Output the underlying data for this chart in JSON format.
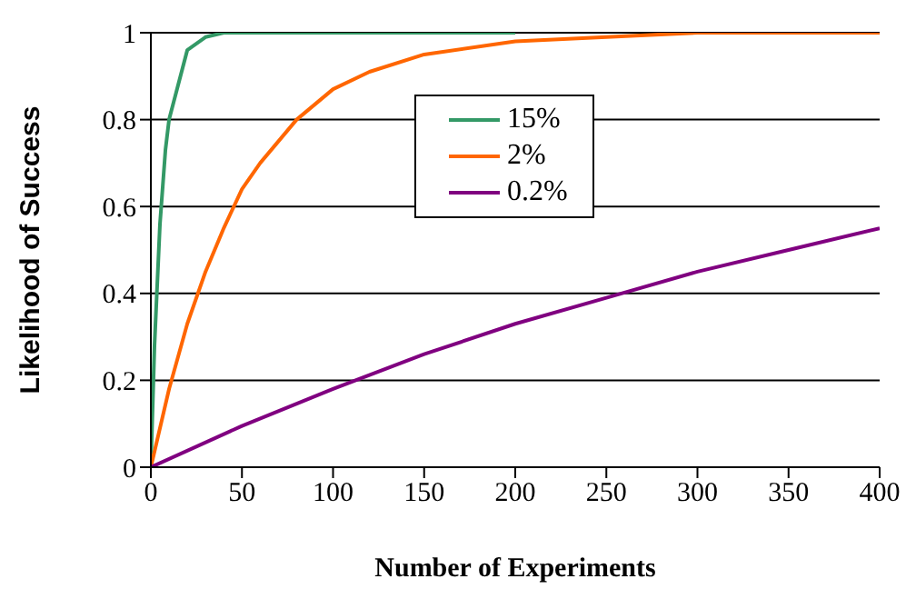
{
  "chart_data": {
    "type": "line",
    "xlabel": "Number of Experiments",
    "ylabel": "Likelihood of Success",
    "xlim": [
      0,
      400
    ],
    "xticks": [
      0,
      50,
      100,
      150,
      200,
      250,
      300,
      350,
      400
    ],
    "ylim": [
      0,
      1
    ],
    "yticks": [
      0,
      0.2,
      0.4,
      0.6,
      0.8,
      1
    ],
    "grid": "y",
    "legend": "top right",
    "marker": "none",
    "line_style": "solid",
    "series": [
      {
        "name": "15%",
        "color": "#339966",
        "x": [
          0,
          2,
          5,
          8,
          10,
          20,
          30,
          40,
          60,
          200
        ],
        "values": [
          0,
          0.28,
          0.56,
          0.73,
          0.8,
          0.96,
          0.99,
          1,
          1,
          1
        ]
      },
      {
        "name": "2%",
        "color": "#ff6600",
        "x": [
          0,
          10,
          20,
          30,
          40,
          50,
          60,
          80,
          100,
          120,
          150,
          200,
          250,
          300,
          400
        ],
        "values": [
          0,
          0.18,
          0.33,
          0.45,
          0.55,
          0.64,
          0.7,
          0.8,
          0.87,
          0.91,
          0.95,
          0.98,
          0.99,
          1,
          1
        ]
      },
      {
        "name": "0.2%",
        "color": "#800080",
        "x": [
          0,
          50,
          100,
          150,
          200,
          250,
          300,
          350,
          400
        ],
        "values": [
          0,
          0.095,
          0.18,
          0.26,
          0.33,
          0.39,
          0.45,
          0.5,
          0.55
        ]
      }
    ]
  }
}
